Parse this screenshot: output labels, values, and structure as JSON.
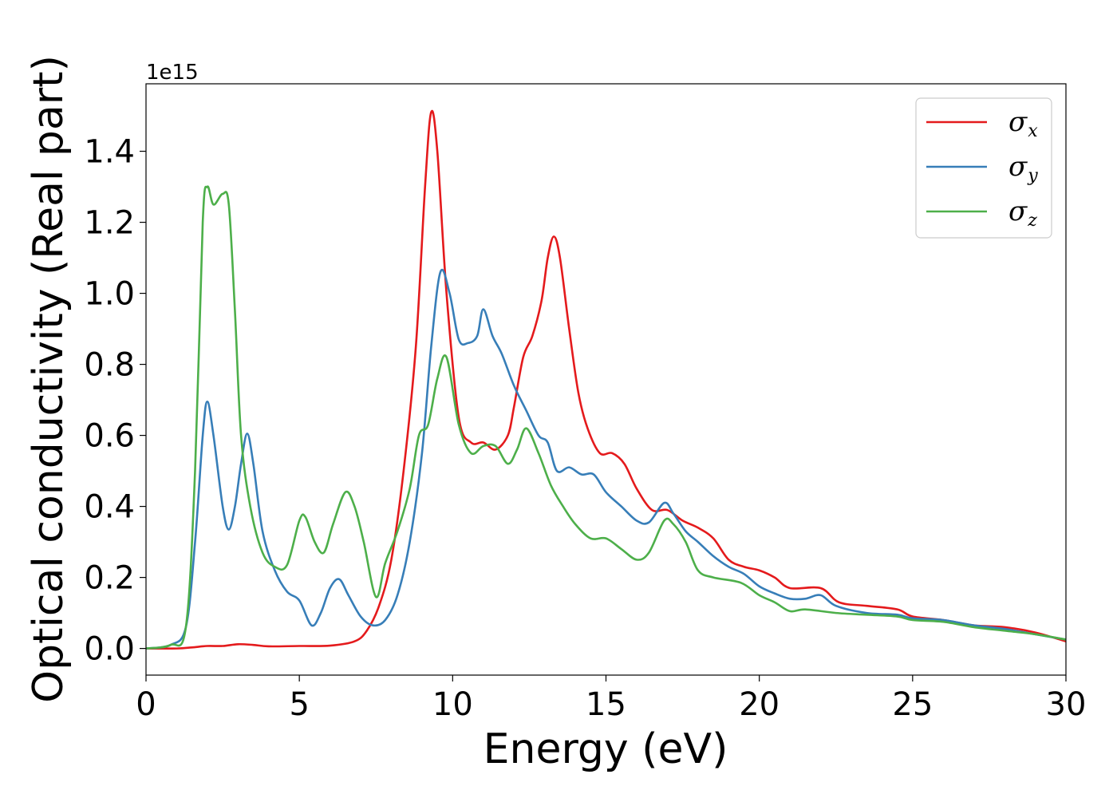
{
  "chart_data": {
    "type": "line",
    "xlabel": "Energy (eV)",
    "ylabel": "Optical conductivity (Real part)",
    "y_offset_text": "1e15",
    "xlim": [
      0,
      30
    ],
    "ylim": [
      -0.075,
      1.59
    ],
    "x_ticks": [
      0,
      5,
      10,
      15,
      20,
      25,
      30
    ],
    "x_tick_labels": [
      "0",
      "5",
      "10",
      "15",
      "20",
      "25",
      "30"
    ],
    "y_ticks": [
      0.0,
      0.2,
      0.4,
      0.6,
      0.8,
      1.0,
      1.2,
      1.4
    ],
    "y_tick_labels": [
      "0.0",
      "0.2",
      "0.4",
      "0.6",
      "0.8",
      "1.0",
      "1.2",
      "1.4"
    ],
    "grid": false,
    "legend_position": "top-right",
    "series": [
      {
        "name": "σx",
        "symbol": "σ",
        "subscript": "x",
        "color": "#e41a1c",
        "points": [
          [
            0,
            0
          ],
          [
            1,
            0
          ],
          [
            1.5,
            0.003
          ],
          [
            2,
            0.007
          ],
          [
            2.5,
            0.007
          ],
          [
            3,
            0.012
          ],
          [
            3.5,
            0.01
          ],
          [
            4,
            0.006
          ],
          [
            5,
            0.007
          ],
          [
            6,
            0.008
          ],
          [
            6.8,
            0.02
          ],
          [
            7.2,
            0.05
          ],
          [
            7.6,
            0.12
          ],
          [
            8,
            0.25
          ],
          [
            8.4,
            0.5
          ],
          [
            8.8,
            0.85
          ],
          [
            9.1,
            1.3
          ],
          [
            9.3,
            1.51
          ],
          [
            9.5,
            1.4
          ],
          [
            9.8,
            1.0
          ],
          [
            10.2,
            0.65
          ],
          [
            10.6,
            0.58
          ],
          [
            11,
            0.58
          ],
          [
            11.4,
            0.56
          ],
          [
            11.8,
            0.6
          ],
          [
            12,
            0.68
          ],
          [
            12.3,
            0.82
          ],
          [
            12.6,
            0.88
          ],
          [
            12.9,
            0.98
          ],
          [
            13.1,
            1.1
          ],
          [
            13.3,
            1.16
          ],
          [
            13.5,
            1.1
          ],
          [
            13.8,
            0.9
          ],
          [
            14.1,
            0.72
          ],
          [
            14.4,
            0.62
          ],
          [
            14.8,
            0.55
          ],
          [
            15.2,
            0.55
          ],
          [
            15.6,
            0.52
          ],
          [
            16,
            0.45
          ],
          [
            16.5,
            0.39
          ],
          [
            17,
            0.39
          ],
          [
            17.5,
            0.36
          ],
          [
            18,
            0.34
          ],
          [
            18.5,
            0.31
          ],
          [
            19,
            0.25
          ],
          [
            19.5,
            0.23
          ],
          [
            20,
            0.22
          ],
          [
            20.5,
            0.2
          ],
          [
            21,
            0.17
          ],
          [
            22,
            0.17
          ],
          [
            22.6,
            0.13
          ],
          [
            23.5,
            0.12
          ],
          [
            24.5,
            0.11
          ],
          [
            25,
            0.09
          ],
          [
            26,
            0.08
          ],
          [
            27,
            0.065
          ],
          [
            28,
            0.06
          ],
          [
            29,
            0.045
          ],
          [
            30,
            0.02
          ]
        ]
      },
      {
        "name": "σy",
        "symbol": "σ",
        "subscript": "y",
        "color": "#377eb8",
        "points": [
          [
            0,
            0
          ],
          [
            0.8,
            0.01
          ],
          [
            1.3,
            0.06
          ],
          [
            1.6,
            0.3
          ],
          [
            1.85,
            0.6
          ],
          [
            2,
            0.695
          ],
          [
            2.2,
            0.6
          ],
          [
            2.5,
            0.4
          ],
          [
            2.7,
            0.335
          ],
          [
            2.9,
            0.4
          ],
          [
            3.1,
            0.52
          ],
          [
            3.3,
            0.605
          ],
          [
            3.5,
            0.52
          ],
          [
            3.8,
            0.33
          ],
          [
            4.2,
            0.22
          ],
          [
            4.6,
            0.16
          ],
          [
            5,
            0.135
          ],
          [
            5.4,
            0.065
          ],
          [
            5.7,
            0.1
          ],
          [
            6,
            0.17
          ],
          [
            6.3,
            0.195
          ],
          [
            6.6,
            0.15
          ],
          [
            7,
            0.09
          ],
          [
            7.4,
            0.065
          ],
          [
            7.8,
            0.08
          ],
          [
            8.2,
            0.15
          ],
          [
            8.6,
            0.3
          ],
          [
            9,
            0.55
          ],
          [
            9.3,
            0.85
          ],
          [
            9.6,
            1.06
          ],
          [
            9.9,
            1.0
          ],
          [
            10.2,
            0.87
          ],
          [
            10.5,
            0.86
          ],
          [
            10.8,
            0.88
          ],
          [
            11,
            0.955
          ],
          [
            11.3,
            0.88
          ],
          [
            11.6,
            0.83
          ],
          [
            12,
            0.74
          ],
          [
            12.4,
            0.67
          ],
          [
            12.8,
            0.6
          ],
          [
            13.1,
            0.58
          ],
          [
            13.4,
            0.5
          ],
          [
            13.8,
            0.51
          ],
          [
            14.2,
            0.49
          ],
          [
            14.6,
            0.49
          ],
          [
            15,
            0.44
          ],
          [
            15.5,
            0.4
          ],
          [
            16,
            0.36
          ],
          [
            16.4,
            0.355
          ],
          [
            16.9,
            0.41
          ],
          [
            17.2,
            0.38
          ],
          [
            17.6,
            0.33
          ],
          [
            18,
            0.3
          ],
          [
            18.5,
            0.26
          ],
          [
            19,
            0.23
          ],
          [
            19.5,
            0.21
          ],
          [
            20,
            0.175
          ],
          [
            20.5,
            0.155
          ],
          [
            21,
            0.14
          ],
          [
            21.5,
            0.14
          ],
          [
            22,
            0.15
          ],
          [
            22.5,
            0.12
          ],
          [
            23.5,
            0.1
          ],
          [
            24.5,
            0.095
          ],
          [
            25,
            0.085
          ],
          [
            26,
            0.08
          ],
          [
            27,
            0.065
          ],
          [
            28,
            0.055
          ],
          [
            29,
            0.04
          ],
          [
            30,
            0.025
          ]
        ]
      },
      {
        "name": "σz",
        "symbol": "σ",
        "subscript": "z",
        "color": "#4daf4a",
        "points": [
          [
            0,
            0
          ],
          [
            0.8,
            0.01
          ],
          [
            1.3,
            0.06
          ],
          [
            1.6,
            0.5
          ],
          [
            1.85,
            1.2
          ],
          [
            2,
            1.3
          ],
          [
            2.2,
            1.25
          ],
          [
            2.5,
            1.28
          ],
          [
            2.7,
            1.25
          ],
          [
            2.9,
            0.95
          ],
          [
            3.1,
            0.6
          ],
          [
            3.4,
            0.4
          ],
          [
            3.8,
            0.27
          ],
          [
            4.2,
            0.23
          ],
          [
            4.6,
            0.235
          ],
          [
            5,
            0.36
          ],
          [
            5.2,
            0.37
          ],
          [
            5.5,
            0.3
          ],
          [
            5.8,
            0.27
          ],
          [
            6.1,
            0.35
          ],
          [
            6.5,
            0.44
          ],
          [
            6.8,
            0.4
          ],
          [
            7.1,
            0.3
          ],
          [
            7.5,
            0.145
          ],
          [
            7.8,
            0.24
          ],
          [
            8.2,
            0.33
          ],
          [
            8.6,
            0.45
          ],
          [
            8.9,
            0.6
          ],
          [
            9.2,
            0.63
          ],
          [
            9.5,
            0.76
          ],
          [
            9.8,
            0.82
          ],
          [
            10.2,
            0.63
          ],
          [
            10.6,
            0.55
          ],
          [
            11,
            0.57
          ],
          [
            11.4,
            0.57
          ],
          [
            11.8,
            0.52
          ],
          [
            12.1,
            0.56
          ],
          [
            12.4,
            0.62
          ],
          [
            12.8,
            0.55
          ],
          [
            13.2,
            0.46
          ],
          [
            13.6,
            0.4
          ],
          [
            14,
            0.35
          ],
          [
            14.5,
            0.31
          ],
          [
            15,
            0.31
          ],
          [
            15.5,
            0.28
          ],
          [
            16,
            0.25
          ],
          [
            16.4,
            0.27
          ],
          [
            16.9,
            0.36
          ],
          [
            17.2,
            0.35
          ],
          [
            17.6,
            0.3
          ],
          [
            18,
            0.22
          ],
          [
            18.5,
            0.2
          ],
          [
            19.4,
            0.185
          ],
          [
            20,
            0.15
          ],
          [
            20.5,
            0.13
          ],
          [
            21,
            0.105
          ],
          [
            21.5,
            0.11
          ],
          [
            22.5,
            0.1
          ],
          [
            23.5,
            0.095
          ],
          [
            24.5,
            0.09
          ],
          [
            25,
            0.08
          ],
          [
            26,
            0.075
          ],
          [
            27,
            0.06
          ],
          [
            28,
            0.05
          ],
          [
            29,
            0.04
          ],
          [
            30,
            0.025
          ]
        ]
      }
    ]
  }
}
